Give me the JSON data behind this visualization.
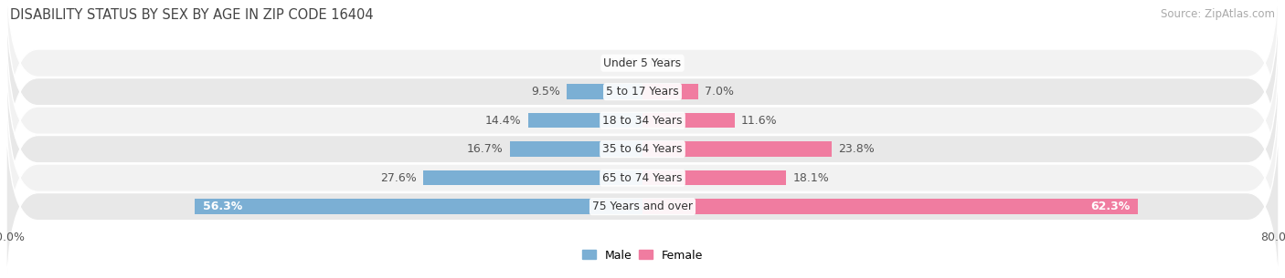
{
  "title": "DISABILITY STATUS BY SEX BY AGE IN ZIP CODE 16404",
  "source": "Source: ZipAtlas.com",
  "categories": [
    "Under 5 Years",
    "5 to 17 Years",
    "18 to 34 Years",
    "35 to 64 Years",
    "65 to 74 Years",
    "75 Years and over"
  ],
  "male_values": [
    0.0,
    9.5,
    14.4,
    16.7,
    27.6,
    56.3
  ],
  "female_values": [
    0.0,
    7.0,
    11.6,
    23.8,
    18.1,
    62.3
  ],
  "male_color": "#7bafd4",
  "female_color": "#f07ca0",
  "row_bg_even": "#f2f2f2",
  "row_bg_odd": "#e8e8e8",
  "max_val": 80.0,
  "bar_height": 0.52,
  "label_fontsize": 9.0,
  "title_fontsize": 10.5,
  "source_fontsize": 8.5,
  "tick_fontsize": 9.0,
  "category_fontsize": 8.8
}
